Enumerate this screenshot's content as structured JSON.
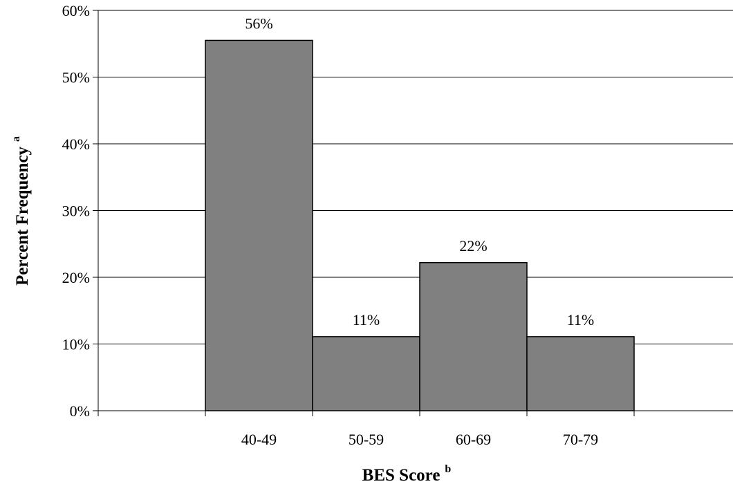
{
  "chart_data": {
    "type": "bar",
    "categories": [
      "40-49",
      "50-59",
      "60-69",
      "70-79"
    ],
    "values": [
      55.5,
      11.1,
      22.2,
      11.1
    ],
    "data_labels": [
      "56%",
      "11%",
      "22%",
      "11%"
    ],
    "title": "",
    "xlabel": "BES Score",
    "xlabel_superscript": "b",
    "ylabel": "Percent Frequency",
    "ylabel_superscript": "a",
    "ylim": [
      0,
      60
    ],
    "y_ticks": [
      0,
      10,
      20,
      30,
      40,
      50,
      60
    ],
    "y_tick_labels": [
      "0%",
      "10%",
      "20%",
      "30%",
      "40%",
      "50%",
      "60%"
    ],
    "grid": true,
    "legend": "none",
    "bar_color": "#808080",
    "bar_edge_color": "#000000",
    "grid_color": "#000000"
  }
}
